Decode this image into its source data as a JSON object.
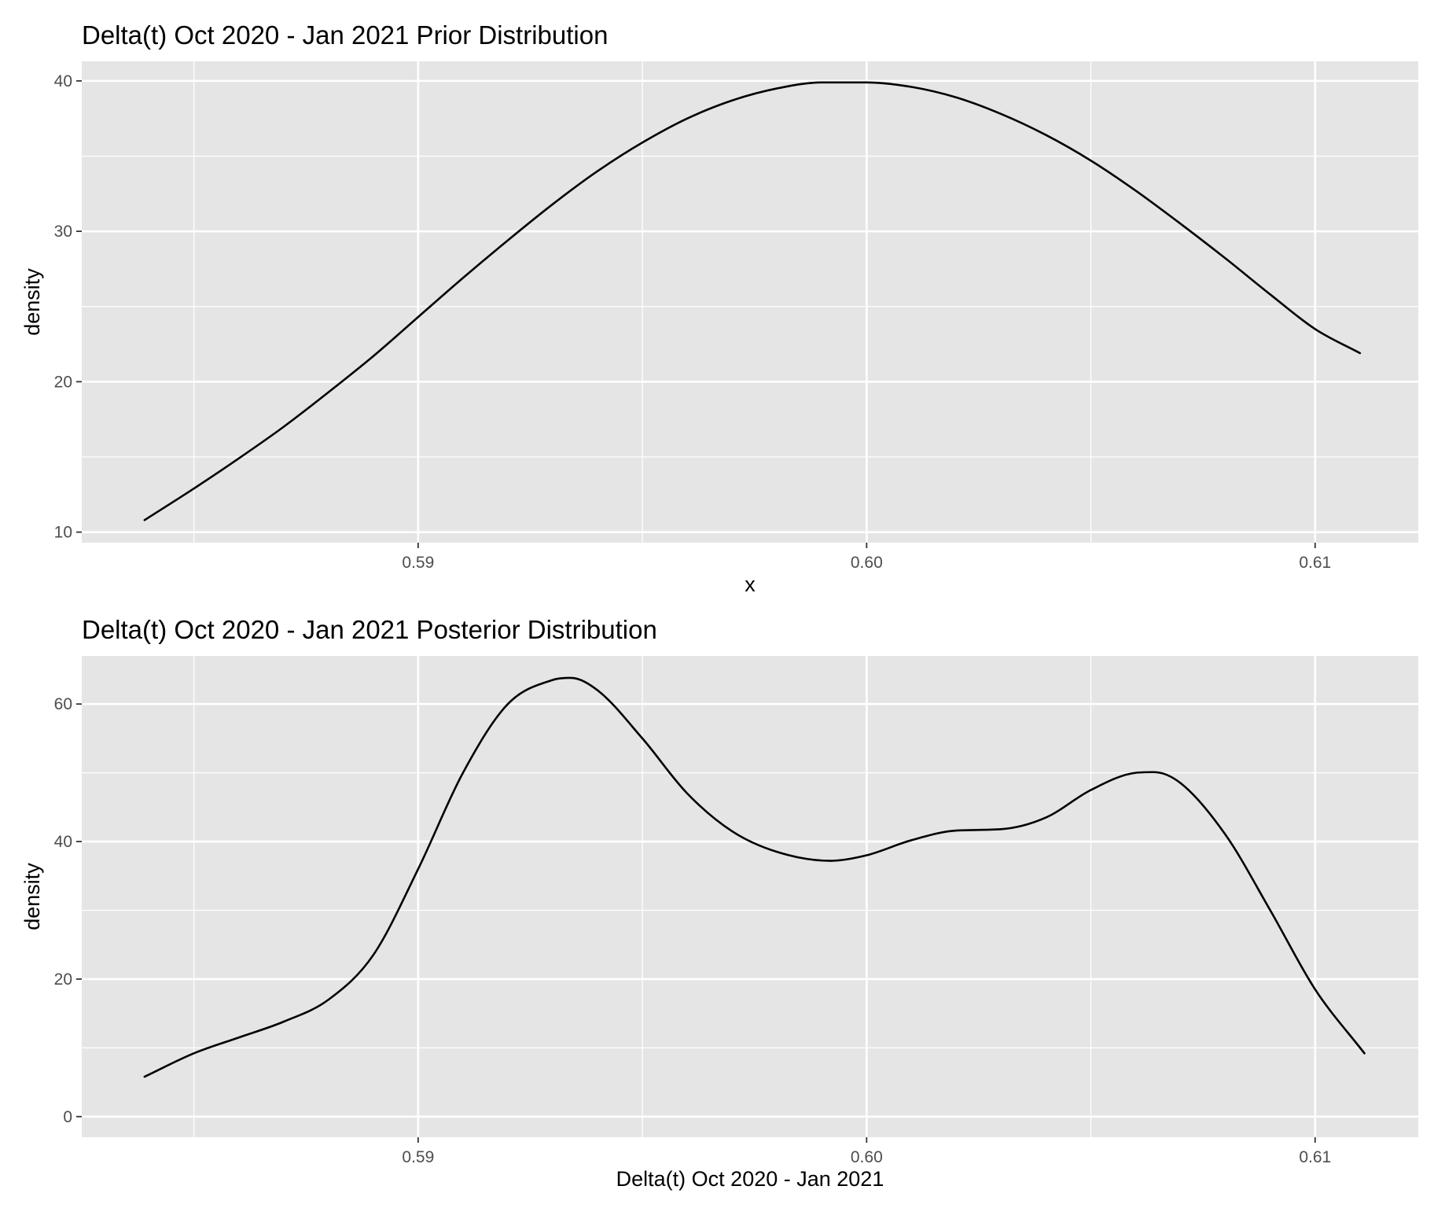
{
  "chart_data": [
    {
      "type": "line",
      "title": "Delta(t) Oct 2020 - Jan 2021 Prior Distribution",
      "xlabel": "x",
      "ylabel": "density",
      "xlim": [
        0.5825,
        0.6123
      ],
      "ylim": [
        9.3,
        41.3
      ],
      "xticks": [
        0.59,
        0.6,
        0.61
      ],
      "xtick_labels": [
        "0.59",
        "0.60",
        "0.61"
      ],
      "xminor": [
        0.585,
        0.595,
        0.605
      ],
      "yticks": [
        10,
        20,
        30,
        40
      ],
      "ytick_labels": [
        "10",
        "20",
        "30",
        "40"
      ],
      "yminor": [
        15,
        25,
        35
      ],
      "grid": true,
      "series": [
        {
          "x": [
            0.5839,
            0.585,
            0.586,
            0.587,
            0.588,
            0.589,
            0.59,
            0.591,
            0.592,
            0.593,
            0.594,
            0.595,
            0.596,
            0.597,
            0.598,
            0.599,
            0.6,
            0.601,
            0.602,
            0.603,
            0.604,
            0.605,
            0.606,
            0.607,
            0.608,
            0.609,
            0.61,
            0.611
          ],
          "y": [
            10.8,
            12.9,
            14.9,
            17.0,
            19.3,
            21.7,
            24.3,
            26.9,
            29.4,
            31.8,
            34.0,
            35.9,
            37.5,
            38.7,
            39.5,
            39.9,
            39.9,
            39.6,
            38.9,
            37.8,
            36.4,
            34.7,
            32.7,
            30.5,
            28.2,
            25.8,
            23.5,
            21.9
          ]
        }
      ]
    },
    {
      "type": "line",
      "title": "Delta(t) Oct 2020 - Jan 2021 Posterior Distribution",
      "xlabel": "Delta(t) Oct 2020 - Jan 2021",
      "ylabel": "density",
      "xlim": [
        0.5825,
        0.6123
      ],
      "ylim": [
        -3.0,
        67.0
      ],
      "xticks": [
        0.59,
        0.6,
        0.61
      ],
      "xtick_labels": [
        "0.59",
        "0.60",
        "0.61"
      ],
      "xminor": [
        0.585,
        0.595,
        0.605
      ],
      "yticks": [
        0,
        20,
        40,
        60
      ],
      "ytick_labels": [
        "0",
        "20",
        "40",
        "60"
      ],
      "yminor": [
        10,
        30,
        50
      ],
      "grid": true,
      "series": [
        {
          "x": [
            0.5839,
            0.585,
            0.586,
            0.587,
            0.588,
            0.589,
            0.59,
            0.591,
            0.592,
            0.593,
            0.5934,
            0.594,
            0.595,
            0.596,
            0.597,
            0.598,
            0.5992,
            0.6,
            0.601,
            0.602,
            0.603,
            0.604,
            0.605,
            0.606,
            0.6064,
            0.607,
            0.608,
            0.609,
            0.61,
            0.6111
          ],
          "y": [
            5.8,
            9.2,
            11.5,
            13.8,
            17.0,
            23.5,
            36.0,
            50.0,
            60.0,
            63.5,
            63.8,
            62.0,
            55.0,
            47.0,
            41.5,
            38.5,
            37.2,
            38.0,
            40.2,
            41.6,
            41.8,
            43.5,
            47.5,
            50.0,
            50.1,
            48.5,
            41.0,
            30.0,
            18.5,
            9.2
          ]
        }
      ]
    }
  ]
}
